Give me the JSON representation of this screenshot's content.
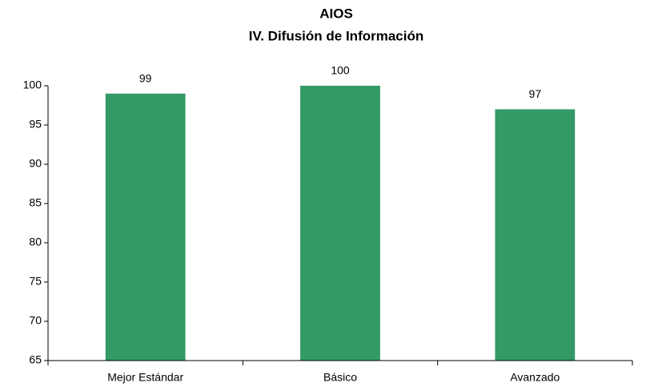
{
  "chart_data": {
    "type": "bar",
    "title": "AIOS",
    "subtitle": "IV. Difusión de Información",
    "categories": [
      "Mejor Estándar",
      "Básico",
      "Avanzado"
    ],
    "values": [
      99,
      100,
      97
    ],
    "color": "#339966",
    "ylim": [
      65,
      100
    ],
    "yticks": [
      65,
      70,
      75,
      80,
      85,
      90,
      95,
      100
    ],
    "grid": false,
    "data_labels": true
  }
}
